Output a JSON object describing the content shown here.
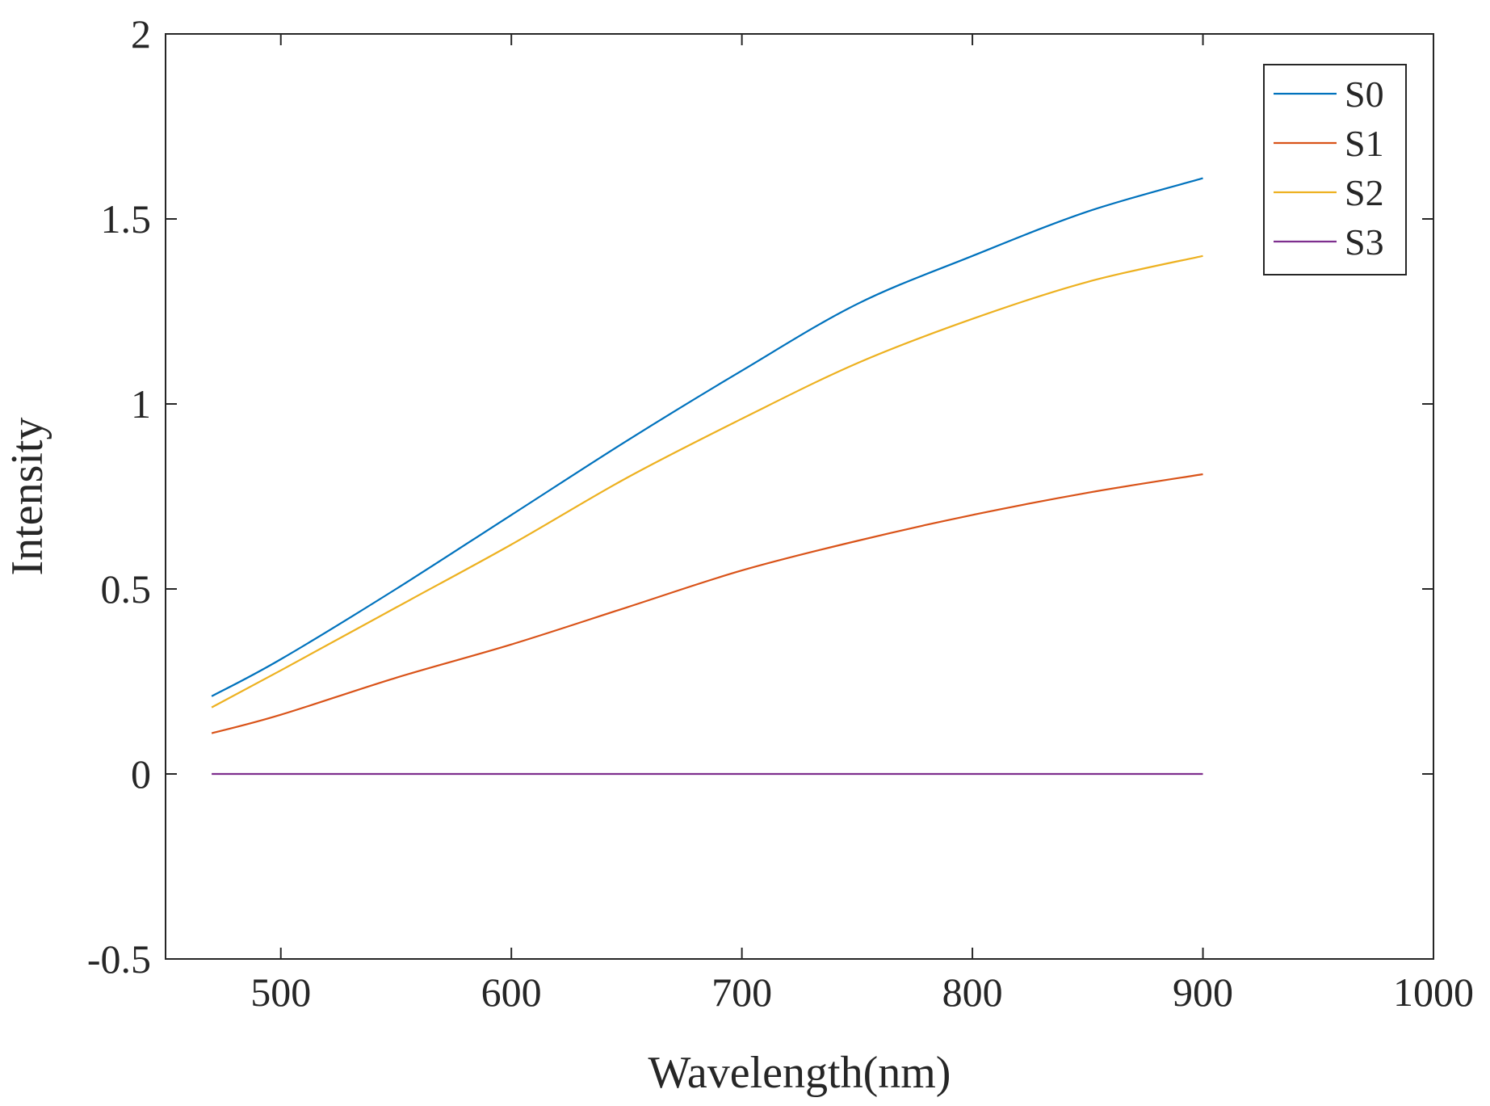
{
  "chart_data": {
    "type": "line",
    "title": "",
    "xlabel": "Wavelength(nm)",
    "ylabel": "Intensity",
    "xlim": [
      450,
      1000
    ],
    "ylim": [
      -0.5,
      2
    ],
    "xticks": [
      500,
      600,
      700,
      800,
      900,
      1000
    ],
    "xtick_labels": [
      "500",
      "600",
      "700",
      "800",
      "900",
      "1000"
    ],
    "yticks": [
      -0.5,
      0,
      0.5,
      1,
      1.5,
      2
    ],
    "ytick_labels": [
      "-0.5",
      "0",
      "0.5",
      "1",
      "1.5",
      "2"
    ],
    "grid": false,
    "legend_position": "top-right",
    "x": [
      470,
      500,
      550,
      600,
      650,
      700,
      750,
      800,
      850,
      900
    ],
    "series": [
      {
        "name": "S0",
        "color": "#0072BD",
        "values": [
          0.21,
          0.31,
          0.5,
          0.7,
          0.9,
          1.09,
          1.27,
          1.4,
          1.52,
          1.61
        ]
      },
      {
        "name": "S1",
        "color": "#D95319",
        "values": [
          0.11,
          0.16,
          0.26,
          0.35,
          0.45,
          0.55,
          0.63,
          0.7,
          0.76,
          0.81
        ]
      },
      {
        "name": "S2",
        "color": "#EDB120",
        "values": [
          0.18,
          0.28,
          0.45,
          0.62,
          0.8,
          0.96,
          1.11,
          1.23,
          1.33,
          1.4
        ]
      },
      {
        "name": "S3",
        "color": "#7E2F8E",
        "values": [
          0.0,
          0.0,
          0.0,
          0.0,
          0.0,
          0.0,
          0.0,
          0.0,
          0.0,
          0.0
        ]
      }
    ]
  }
}
